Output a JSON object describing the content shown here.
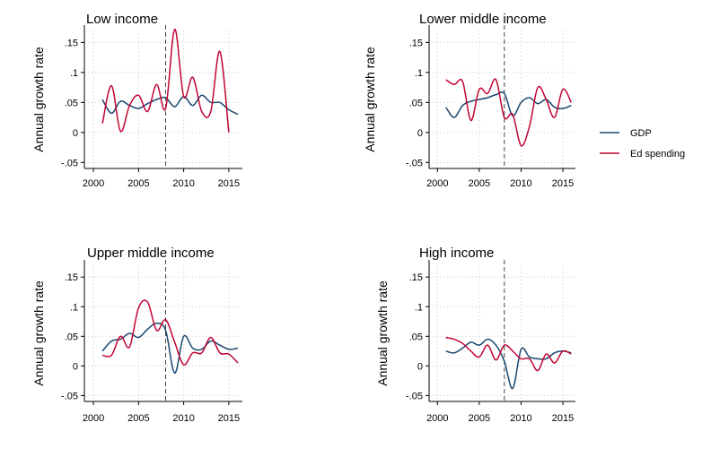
{
  "chart_data": [
    {
      "type": "line",
      "title": "Low income",
      "ylabel": "Annual growth rate",
      "xlabel": "",
      "xlim": [
        1999,
        2016.5
      ],
      "ylim": [
        -0.06,
        0.17
      ],
      "xticks": [
        2000,
        2005,
        2010,
        2015
      ],
      "yticks": [
        -0.05,
        0,
        0.05,
        0.1,
        0.15
      ],
      "ytick_labels": [
        "-.05",
        "0",
        ".05",
        ".1",
        ".15"
      ],
      "grid": true,
      "reference_line_x": 2008,
      "series": [
        {
          "name": "GDP",
          "color": "#1a476f",
          "x": [
            2001,
            2002,
            2003,
            2004,
            2005,
            2006,
            2007,
            2008,
            2009,
            2010,
            2011,
            2012,
            2013,
            2014,
            2015,
            2016
          ],
          "y": [
            0.055,
            0.032,
            0.052,
            0.045,
            0.04,
            0.048,
            0.055,
            0.058,
            0.043,
            0.06,
            0.045,
            0.062,
            0.05,
            0.05,
            0.038,
            0.03
          ]
        },
        {
          "name": "Ed spending",
          "color": "#c10534",
          "x": [
            2001,
            2002,
            2003,
            2004,
            2005,
            2006,
            2007,
            2008,
            2009,
            2010,
            2011,
            2012,
            2013,
            2014,
            2015
          ],
          "y": [
            0.015,
            0.078,
            0.002,
            0.045,
            0.062,
            0.035,
            0.08,
            0.04,
            0.172,
            0.06,
            0.092,
            0.035,
            0.035,
            0.135,
            0.0
          ]
        }
      ]
    },
    {
      "type": "line",
      "title": "Lower middle income",
      "ylabel": "Annual growth rate",
      "xlabel": "",
      "xlim": [
        1999,
        2016.5
      ],
      "ylim": [
        -0.06,
        0.17
      ],
      "xticks": [
        2000,
        2005,
        2010,
        2015
      ],
      "yticks": [
        -0.05,
        0,
        0.05,
        0.1,
        0.15
      ],
      "ytick_labels": [
        "-.05",
        "0",
        ".05",
        ".1",
        ".15"
      ],
      "grid": true,
      "reference_line_x": 2008,
      "series": [
        {
          "name": "GDP",
          "color": "#1a476f",
          "x": [
            2001,
            2002,
            2003,
            2004,
            2005,
            2006,
            2007,
            2008,
            2009,
            2010,
            2011,
            2012,
            2013,
            2014,
            2015,
            2016
          ],
          "y": [
            0.042,
            0.025,
            0.045,
            0.052,
            0.055,
            0.058,
            0.063,
            0.065,
            0.028,
            0.05,
            0.058,
            0.048,
            0.055,
            0.042,
            0.04,
            0.045
          ]
        },
        {
          "name": "Ed spending",
          "color": "#c10534",
          "x": [
            2001,
            2002,
            2003,
            2004,
            2005,
            2006,
            2007,
            2008,
            2009,
            2010,
            2011,
            2012,
            2013,
            2014,
            2015,
            2016
          ],
          "y": [
            0.088,
            0.08,
            0.085,
            0.02,
            0.072,
            0.065,
            0.088,
            0.025,
            0.03,
            -0.022,
            0.01,
            0.075,
            0.055,
            0.025,
            0.072,
            0.05
          ]
        }
      ]
    },
    {
      "type": "line",
      "title": "Upper middle income",
      "ylabel": "Annual growth rate",
      "xlabel": "",
      "xlim": [
        1999,
        2016.5
      ],
      "ylim": [
        -0.06,
        0.17
      ],
      "xticks": [
        2000,
        2005,
        2010,
        2015
      ],
      "yticks": [
        -0.05,
        0,
        0.05,
        0.1,
        0.15
      ],
      "ytick_labels": [
        "-.05",
        "0",
        ".05",
        ".1",
        ".15"
      ],
      "grid": true,
      "reference_line_x": 2008,
      "series": [
        {
          "name": "GDP",
          "color": "#1a476f",
          "x": [
            2001,
            2002,
            2003,
            2004,
            2005,
            2006,
            2007,
            2008,
            2009,
            2010,
            2011,
            2012,
            2013,
            2014,
            2015,
            2016
          ],
          "y": [
            0.025,
            0.042,
            0.045,
            0.055,
            0.048,
            0.062,
            0.072,
            0.06,
            -0.012,
            0.05,
            0.03,
            0.028,
            0.042,
            0.035,
            0.028,
            0.03
          ]
        },
        {
          "name": "Ed spending",
          "color": "#c10534",
          "x": [
            2001,
            2002,
            2003,
            2004,
            2005,
            2006,
            2007,
            2008,
            2009,
            2010,
            2011,
            2012,
            2013,
            2014,
            2015,
            2016
          ],
          "y": [
            0.018,
            0.018,
            0.05,
            0.032,
            0.098,
            0.108,
            0.06,
            0.078,
            0.04,
            0.002,
            0.022,
            0.022,
            0.048,
            0.022,
            0.02,
            0.005
          ]
        }
      ]
    },
    {
      "type": "line",
      "title": "High income",
      "ylabel": "Annual growth rate",
      "xlabel": "",
      "xlim": [
        1999,
        2016.5
      ],
      "ylim": [
        -0.06,
        0.17
      ],
      "xticks": [
        2000,
        2005,
        2010,
        2015
      ],
      "yticks": [
        -0.05,
        0,
        0.05,
        0.1,
        0.15
      ],
      "ytick_labels": [
        "-.05",
        "0",
        ".05",
        ".1",
        ".15"
      ],
      "grid": true,
      "reference_line_x": 2008,
      "series": [
        {
          "name": "GDP",
          "color": "#1a476f",
          "x": [
            2001,
            2002,
            2003,
            2004,
            2005,
            2006,
            2007,
            2008,
            2009,
            2010,
            2011,
            2012,
            2013,
            2014,
            2015,
            2016
          ],
          "y": [
            0.025,
            0.022,
            0.03,
            0.04,
            0.035,
            0.045,
            0.035,
            0.008,
            -0.038,
            0.028,
            0.015,
            0.012,
            0.012,
            0.022,
            0.025,
            0.022
          ]
        },
        {
          "name": "Ed spending",
          "color": "#c10534",
          "x": [
            2001,
            2002,
            2003,
            2004,
            2005,
            2006,
            2007,
            2008,
            2009,
            2010,
            2011,
            2012,
            2013,
            2014,
            2015,
            2016
          ],
          "y": [
            0.048,
            0.045,
            0.038,
            0.025,
            0.015,
            0.035,
            0.01,
            0.035,
            0.025,
            0.012,
            0.012,
            -0.008,
            0.02,
            0.005,
            0.025,
            0.02
          ]
        }
      ]
    }
  ],
  "legend": {
    "placement": "right",
    "items": [
      {
        "label": "GDP",
        "color": "#1a476f"
      },
      {
        "label": "Ed spending",
        "color": "#c10534"
      }
    ]
  }
}
